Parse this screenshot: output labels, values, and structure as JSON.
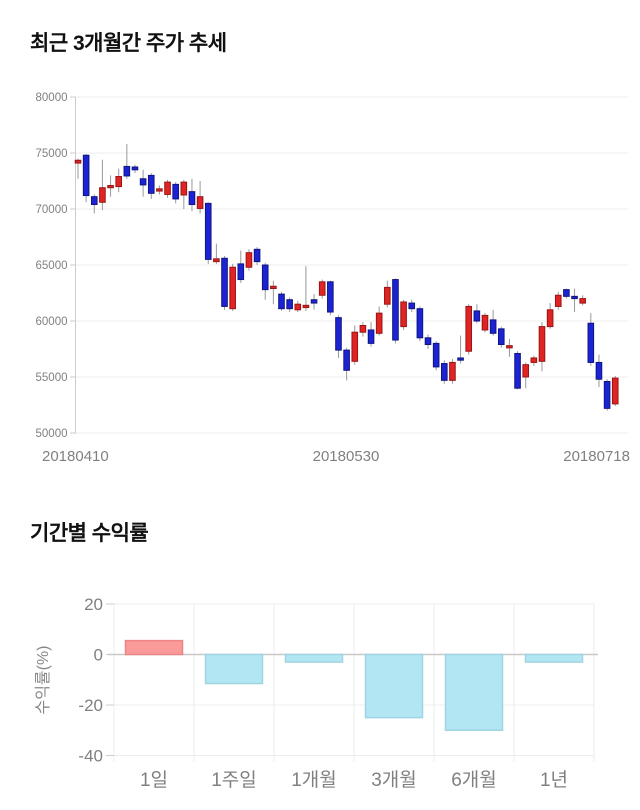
{
  "chart_data": [
    {
      "type": "candlestick",
      "title": "최근 3개월간 주가 추세",
      "y_ticks": [
        80000,
        75000,
        70000,
        65000,
        60000,
        55000,
        50000
      ],
      "ylim": [
        50000,
        80000
      ],
      "x_tick_labels": [
        "20180410",
        "20180530",
        "20180718"
      ],
      "legend": "none",
      "grid": true,
      "colors": {
        "up_fill": "#e02424",
        "up_border": "#991414",
        "down_fill": "#1c23d4",
        "down_border": "#10157f",
        "wick": "#999999",
        "grid": "#ededed",
        "axis": "#cccccc",
        "tick_text": "#808080"
      },
      "candles_ohlc": [
        [
          74100,
          74500,
          72700,
          74350
        ],
        [
          74800,
          74900,
          70600,
          71200
        ],
        [
          71100,
          71300,
          69600,
          70400
        ],
        [
          70600,
          74400,
          69900,
          71900
        ],
        [
          71900,
          73000,
          71100,
          72100
        ],
        [
          72000,
          73600,
          71500,
          72900
        ],
        [
          73800,
          75800,
          72700,
          72950
        ],
        [
          73750,
          73950,
          73200,
          73500
        ],
        [
          72700,
          73500,
          71100,
          72150
        ],
        [
          73000,
          73200,
          70900,
          71400
        ],
        [
          71600,
          72100,
          71300,
          71800
        ],
        [
          71300,
          72600,
          71000,
          72400
        ],
        [
          72200,
          72400,
          70500,
          70900
        ],
        [
          71250,
          72600,
          70000,
          72400
        ],
        [
          71550,
          72700,
          69800,
          70400
        ],
        [
          70050,
          72500,
          69600,
          71100
        ],
        [
          70500,
          70600,
          65100,
          65500
        ],
        [
          65300,
          66900,
          65100,
          65550
        ],
        [
          65600,
          65800,
          61000,
          61300
        ],
        [
          61100,
          65100,
          60900,
          64800
        ],
        [
          65100,
          66300,
          63400,
          63700
        ],
        [
          64800,
          66400,
          64500,
          66100
        ],
        [
          66400,
          66600,
          65000,
          65300
        ],
        [
          65000,
          65200,
          61900,
          62800
        ],
        [
          62900,
          63600,
          61500,
          63100
        ],
        [
          62400,
          62600,
          60900,
          61100
        ],
        [
          61900,
          62100,
          60800,
          61100
        ],
        [
          61000,
          61800,
          60800,
          61500
        ],
        [
          61200,
          64900,
          60900,
          61400
        ],
        [
          61900,
          62400,
          61000,
          61600
        ],
        [
          62300,
          63700,
          62000,
          63500
        ],
        [
          63500,
          63600,
          60500,
          60800
        ],
        [
          60300,
          60500,
          56700,
          57400
        ],
        [
          57400,
          57600,
          54700,
          55600
        ],
        [
          56400,
          59600,
          56100,
          59000
        ],
        [
          59000,
          59900,
          58600,
          59600
        ],
        [
          59200,
          59900,
          57700,
          58000
        ],
        [
          58900,
          61300,
          58700,
          60700
        ],
        [
          61500,
          63600,
          61200,
          63000
        ],
        [
          63700,
          63800,
          58000,
          58300
        ],
        [
          59500,
          61900,
          59200,
          61700
        ],
        [
          61600,
          61900,
          60800,
          61100
        ],
        [
          61100,
          61300,
          58200,
          58500
        ],
        [
          58500,
          58800,
          57500,
          57900
        ],
        [
          58000,
          58200,
          55600,
          55900
        ],
        [
          56200,
          56500,
          54400,
          54700
        ],
        [
          54700,
          56600,
          54400,
          56300
        ],
        [
          56700,
          58700,
          56200,
          56500
        ],
        [
          57300,
          61500,
          57000,
          61300
        ],
        [
          60900,
          61500,
          59800,
          60000
        ],
        [
          59200,
          60700,
          59000,
          60500
        ],
        [
          60100,
          61000,
          58700,
          58900
        ],
        [
          59300,
          59500,
          57600,
          57900
        ],
        [
          57600,
          58400,
          56800,
          57800
        ],
        [
          57100,
          57300,
          53900,
          54000
        ],
        [
          55000,
          56300,
          54000,
          56100
        ],
        [
          56300,
          56900,
          56000,
          56700
        ],
        [
          56400,
          59900,
          55500,
          59500
        ],
        [
          59500,
          61600,
          59300,
          61000
        ],
        [
          61300,
          62600,
          61000,
          62300
        ],
        [
          62800,
          62900,
          62000,
          62200
        ],
        [
          62200,
          62900,
          60800,
          62000
        ],
        [
          61600,
          62300,
          61400,
          62000
        ],
        [
          59800,
          60700,
          56000,
          56300
        ],
        [
          56300,
          57000,
          54100,
          54800
        ],
        [
          54600,
          54800,
          52000,
          52200
        ],
        [
          52600,
          55100,
          52400,
          54900
        ]
      ]
    },
    {
      "type": "bar",
      "title": "기간별 수익률",
      "ylabel": "수익률(%)",
      "categories": [
        "1일",
        "1주일",
        "1개월",
        "3개월",
        "6개월",
        "1년"
      ],
      "values": [
        5.5,
        -11.5,
        -3,
        -25,
        -30,
        -3
      ],
      "y_ticks": [
        20,
        0,
        -20,
        -40
      ],
      "ylim": [
        -45,
        25
      ],
      "legend": "none",
      "grid": true,
      "colors": {
        "positive_fill": "#fa9a9a",
        "positive_border": "#ee8585",
        "negative_fill": "#b2e6f2",
        "negative_border": "#a0d4e0",
        "grid": "#ececec",
        "zero_line": "#c8c8c8",
        "tick_text": "#808080",
        "axis_label": "#888888"
      }
    }
  ]
}
